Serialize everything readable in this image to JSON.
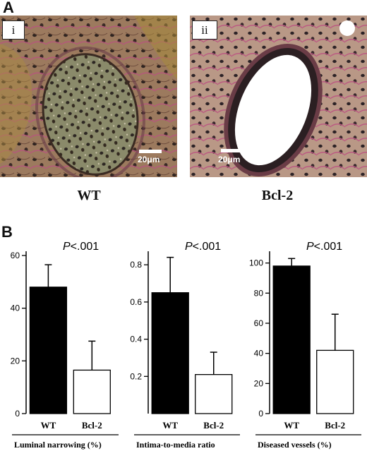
{
  "panel_a": {
    "letter": "A",
    "images": [
      {
        "tag": "i",
        "scale": "20μm",
        "group": "WT"
      },
      {
        "tag": "ii",
        "scale": "20μm",
        "group": "Bcl-2"
      }
    ]
  },
  "panel_b": {
    "letter": "B"
  },
  "chart_data": [
    {
      "type": "bar",
      "annotation": "P<.001",
      "categories": [
        "WT",
        "Bcl-2"
      ],
      "values": [
        48,
        16.5
      ],
      "errors": [
        8.5,
        11
      ],
      "fills": [
        "#000000",
        "#ffffff"
      ],
      "xlabel": "Luminal narrowing (%)",
      "ylim": [
        0,
        60
      ],
      "yticks": [
        0,
        20,
        40,
        60
      ],
      "ytick_labels": [
        "0",
        "20",
        "40",
        "60"
      ]
    },
    {
      "type": "bar",
      "annotation": "P<.001",
      "categories": [
        "WT",
        "Bcl-2"
      ],
      "values": [
        0.65,
        0.21
      ],
      "errors": [
        0.19,
        0.12
      ],
      "fills": [
        "#000000",
        "#ffffff"
      ],
      "xlabel": "Intima-to-media ratio",
      "ylim": [
        0,
        0.85
      ],
      "yticks": [
        0.2,
        0.4,
        0.6,
        0.8
      ],
      "ytick_labels": [
        "0.2",
        "0.4",
        "0.6",
        "0.8"
      ]
    },
    {
      "type": "bar",
      "annotation": "P<.001",
      "categories": [
        "WT",
        "Bcl-2"
      ],
      "values": [
        98,
        42
      ],
      "errors": [
        5,
        24
      ],
      "fills": [
        "#000000",
        "#ffffff"
      ],
      "xlabel": "Diseased vessels (%)",
      "ylim": [
        0,
        105
      ],
      "yticks": [
        0,
        20,
        40,
        60,
        80,
        100
      ],
      "ytick_labels": [
        "0",
        "20",
        "40",
        "60",
        "80",
        "100"
      ]
    }
  ]
}
